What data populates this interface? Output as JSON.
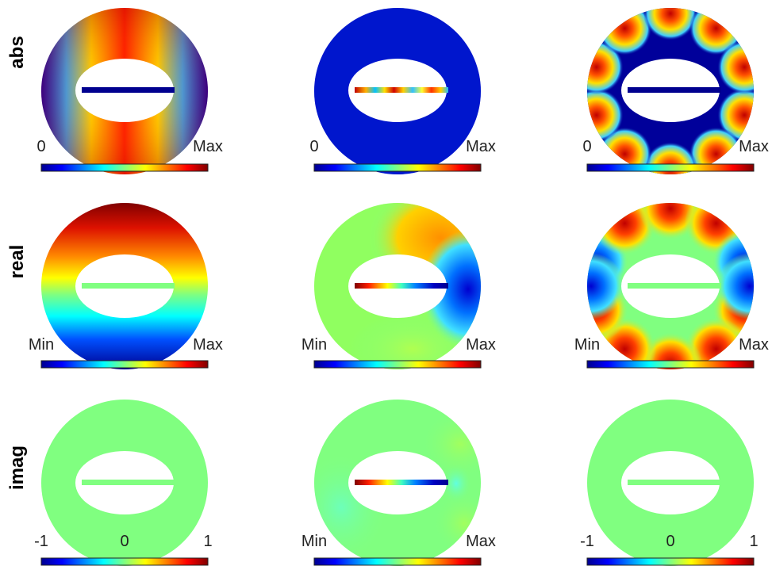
{
  "row_labels": [
    "abs",
    "real",
    "imag"
  ],
  "colormap": "jet",
  "colorbar_ticks": [
    [
      [
        "0",
        "Max"
      ],
      [
        "0",
        "Max"
      ],
      [
        "0",
        "Max"
      ]
    ],
    [
      [
        "Min",
        "Max"
      ],
      [
        "Min",
        "Max"
      ],
      [
        "Min",
        "Max"
      ]
    ],
    [
      [
        "-1",
        "0",
        "1"
      ],
      [
        "Min",
        "Max"
      ],
      [
        "-1",
        "0",
        "1"
      ]
    ]
  ],
  "panels": [
    {
      "row": "abs",
      "col": 1,
      "pattern": "abs of cos(theta) — red top/bottom, blue at left/right",
      "crack": "solid dark blue"
    },
    {
      "row": "abs",
      "col": 2,
      "pattern": "nearly uniform dark blue",
      "crack": "oscillating red/yellow/cyan"
    },
    {
      "row": "abs",
      "col": 3,
      "pattern": "dark blue with ten red/yellow lobes on outer rim",
      "crack": "solid dark blue"
    },
    {
      "row": "real",
      "col": 1,
      "pattern": "linear gradient, dark red top to dark blue bottom",
      "crack": "solid green"
    },
    {
      "row": "real",
      "col": 2,
      "pattern": "green with orange on upper right and blue lobe on right",
      "crack": "red to blue"
    },
    {
      "row": "real",
      "col": 3,
      "pattern": "green with five red lobes at top/bottom and blue lobes on sides",
      "crack": "solid green"
    },
    {
      "row": "imag",
      "col": 1,
      "pattern": "uniform green",
      "crack": "solid green"
    },
    {
      "row": "imag",
      "col": 2,
      "pattern": "mostly green with faint cyan/yellow variation",
      "crack": "red to blue"
    },
    {
      "row": "imag",
      "col": 3,
      "pattern": "uniform green",
      "crack": "solid green"
    }
  ]
}
